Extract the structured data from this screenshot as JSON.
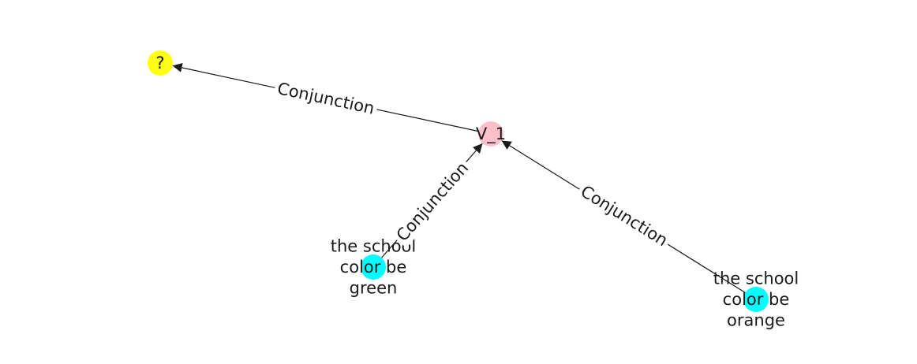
{
  "colors": {
    "question": "#ffff0f",
    "variable": "#ffc0cb",
    "fact": "#00ffff",
    "edge": "#1a1a1a"
  },
  "nodes": [
    {
      "id": "question",
      "label": "?",
      "color_key": "question"
    },
    {
      "id": "v1",
      "label": "V_1",
      "color_key": "variable"
    },
    {
      "id": "green",
      "label_lines": [
        "the school",
        "color be",
        "green"
      ],
      "color_key": "fact"
    },
    {
      "id": "orange",
      "label_lines": [
        "the school",
        "color be",
        "orange"
      ],
      "color_key": "fact"
    }
  ],
  "edges": [
    {
      "id": "v1-to-question",
      "from": "v1",
      "to": "question",
      "label": "Conjunction"
    },
    {
      "id": "green-to-v1",
      "from": "green",
      "to": "v1",
      "label": "Conjunction"
    },
    {
      "id": "orange-to-v1",
      "from": "orange",
      "to": "v1",
      "label": "Conjunction"
    }
  ]
}
